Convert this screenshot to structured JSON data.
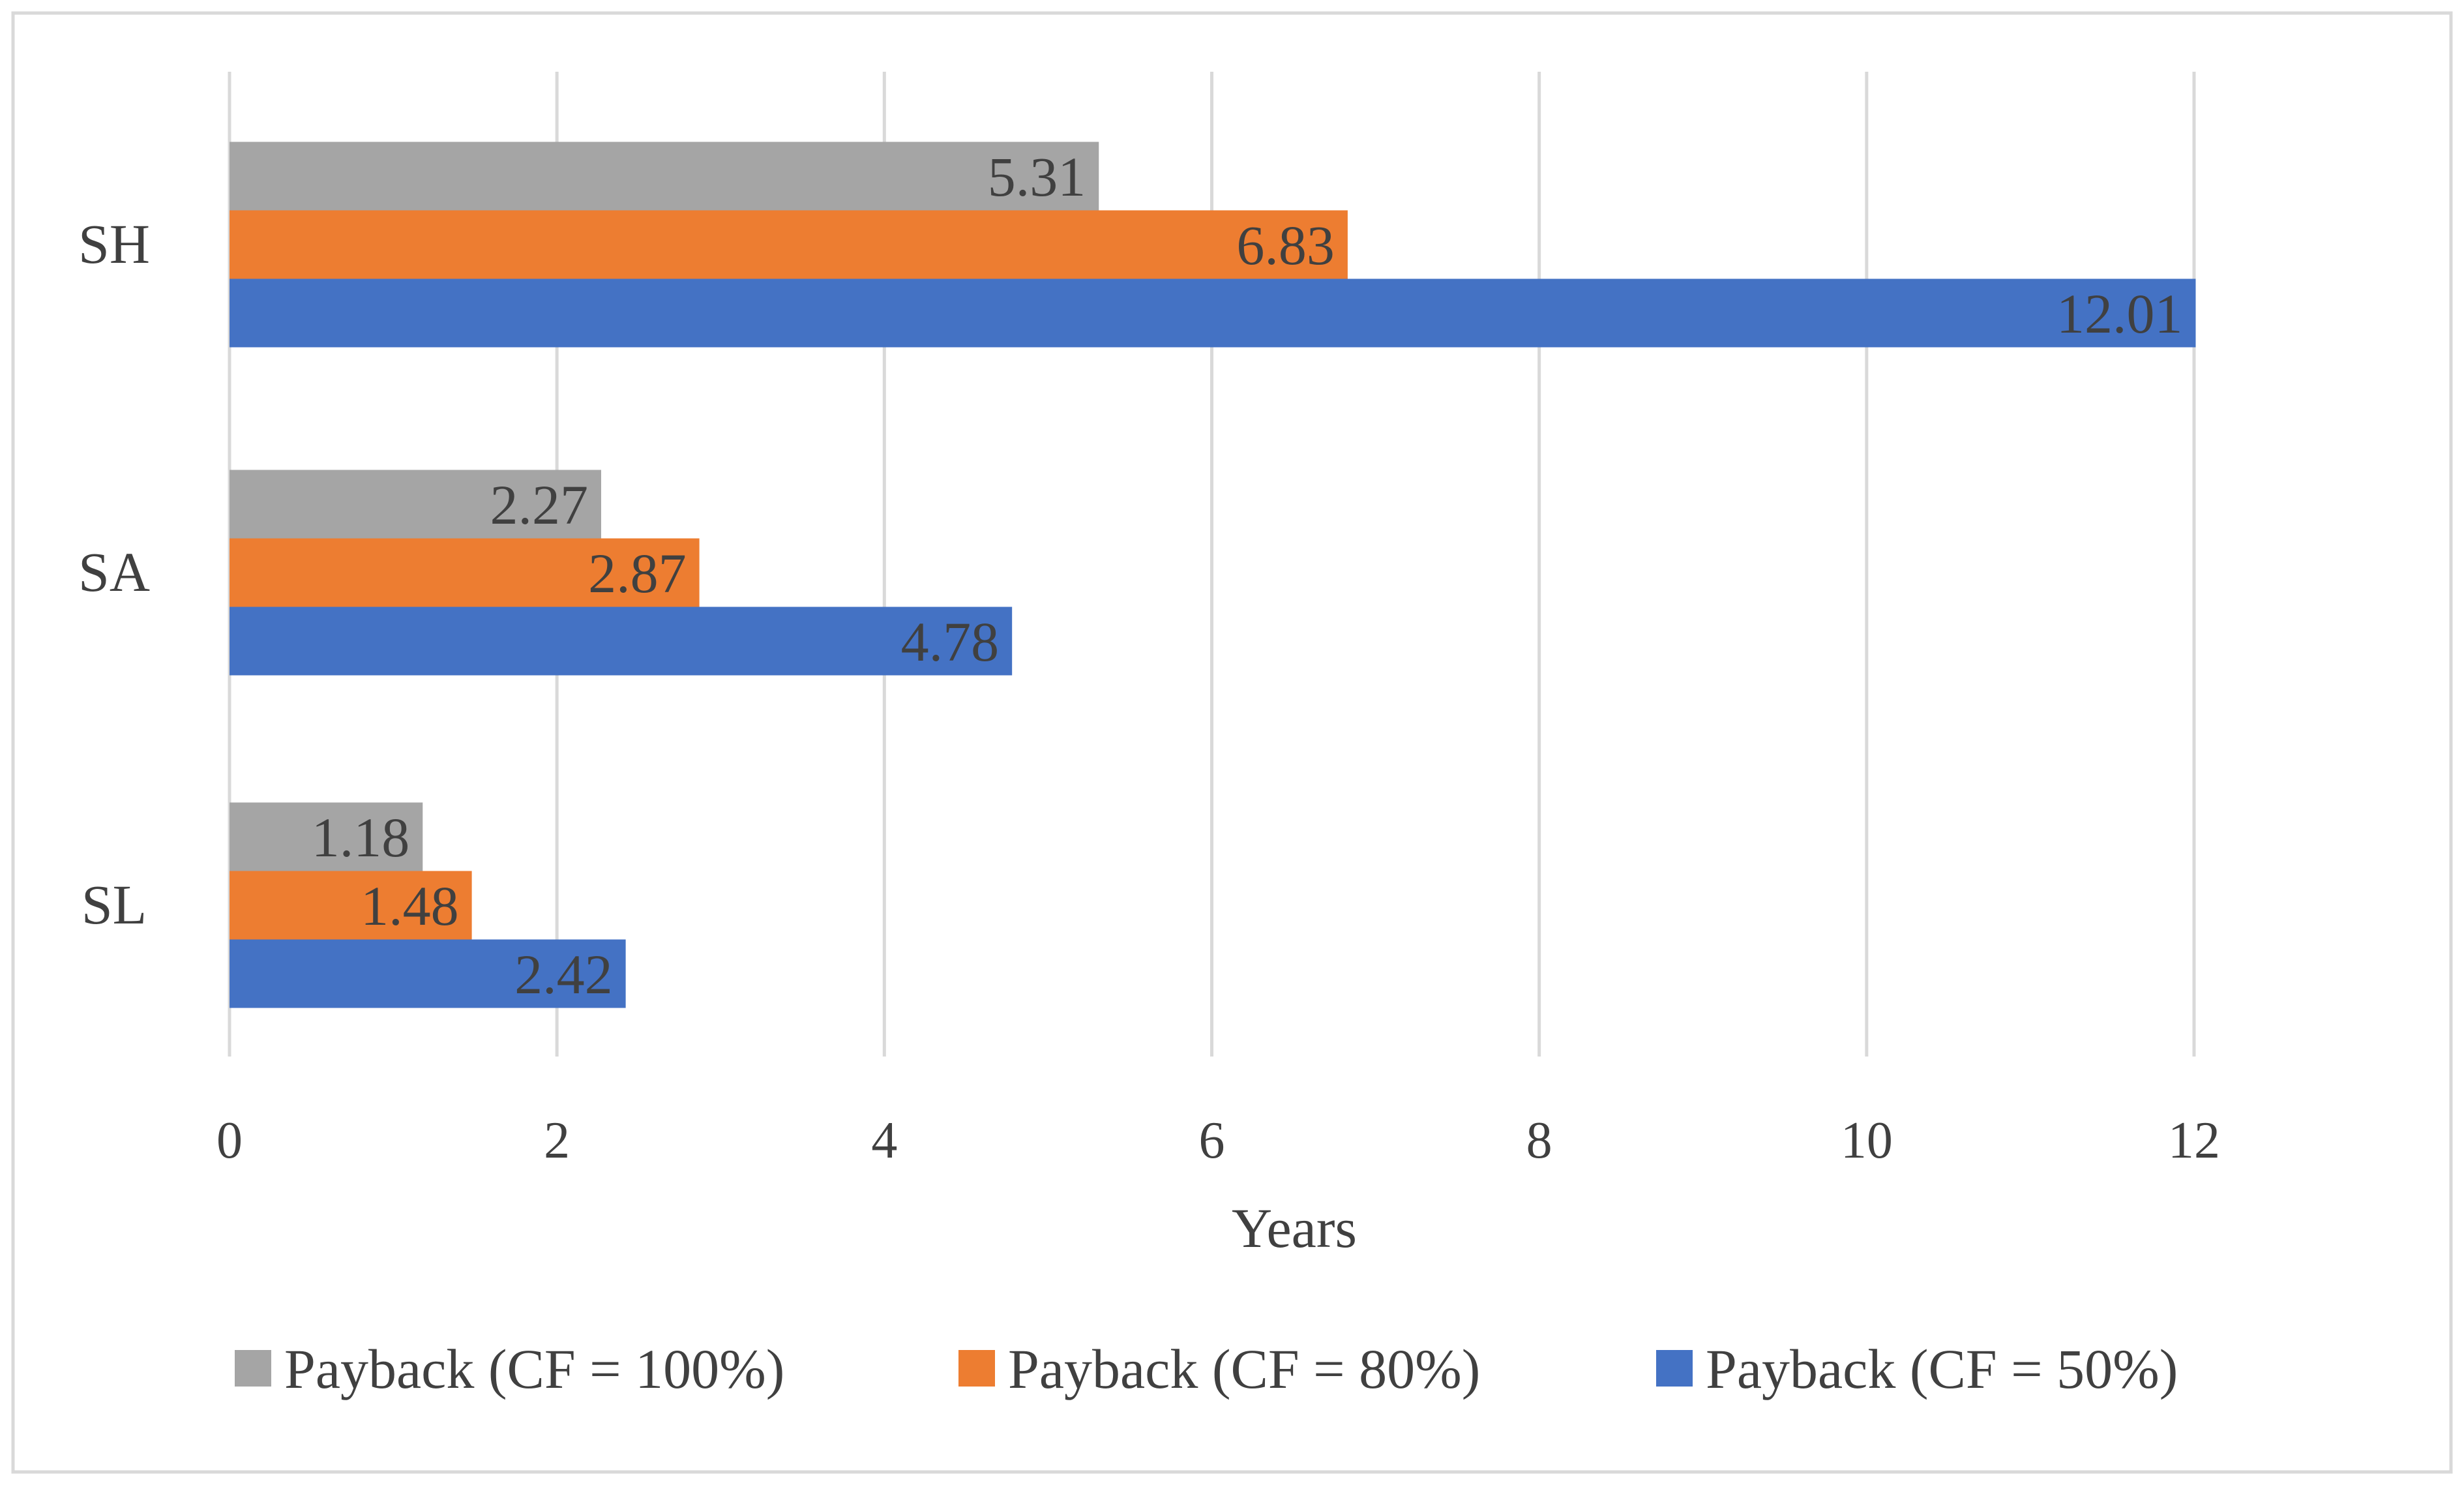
{
  "chart_data": {
    "type": "bar",
    "orientation": "horizontal",
    "title": "",
    "xlabel": "Years",
    "ylabel": "",
    "xlim": [
      0,
      12
    ],
    "xticks": [
      0,
      2,
      4,
      6,
      8,
      10,
      12
    ],
    "grid": true,
    "legend_position": "bottom",
    "categories": [
      "SH",
      "SA",
      "SL"
    ],
    "series": [
      {
        "name": "Payback (CF = 100%)",
        "color": "#a5a5a5",
        "values": [
          5.31,
          2.27,
          1.18
        ],
        "labels": [
          "5.31",
          "2.27",
          "1.18"
        ]
      },
      {
        "name": "Payback (CF = 80%)",
        "color": "#ed7d31",
        "values": [
          6.83,
          2.87,
          1.48
        ],
        "labels": [
          "6.83",
          "2.87",
          "1.48"
        ]
      },
      {
        "name": "Payback (CF = 50%)",
        "color": "#4472c4",
        "values": [
          12.01,
          4.78,
          2.42
        ],
        "labels": [
          "12.01",
          "4.78",
          "2.42"
        ]
      }
    ]
  },
  "colors": {
    "background": "#ffffff",
    "border": "#d9d9d9",
    "grid": "#d9d9d9",
    "text": "#404040"
  }
}
